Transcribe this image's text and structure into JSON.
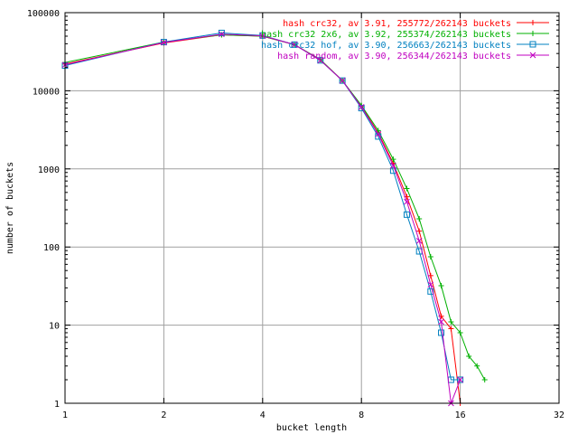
{
  "chart_data": {
    "type": "line",
    "title": "",
    "xlabel": "bucket length",
    "ylabel": "number of buckets",
    "x_scale": "log2",
    "y_scale": "log10",
    "xlim": [
      1,
      32
    ],
    "ylim": [
      1,
      100000
    ],
    "grid": true,
    "legend_position": "top-right",
    "x_ticks": [
      1,
      2,
      4,
      8,
      16,
      32
    ],
    "x_tick_labels": [
      "1",
      "2",
      "4",
      "8",
      "16",
      "32"
    ],
    "y_ticks": [
      1,
      10,
      100,
      1000,
      10000,
      100000
    ],
    "y_tick_labels": [
      "1",
      "10",
      "100",
      "1000",
      "10000",
      "100000"
    ],
    "series": [
      {
        "name": "hash crc32, av 3.91, 255772/262143 buckets",
        "color": "#ff0000",
        "marker": "plus",
        "x": [
          1,
          2,
          3,
          4,
          5,
          6,
          7,
          8,
          9,
          10,
          11,
          12,
          13,
          14,
          15,
          16
        ],
        "y": [
          22000,
          41000,
          52000,
          50000,
          39000,
          25000,
          13500,
          6300,
          2900,
          1180,
          440,
          160,
          43,
          13,
          9,
          1
        ]
      },
      {
        "name": "hash crc32 2x6, av 3.92, 255374/262143 buckets",
        "color": "#00b000",
        "marker": "plus",
        "x": [
          1,
          2,
          3,
          4,
          5,
          6,
          7,
          8,
          9,
          10,
          11,
          12,
          13,
          14,
          15,
          16,
          17,
          18,
          19
        ],
        "y": [
          23000,
          42000,
          52000,
          50000,
          39000,
          25000,
          13500,
          6500,
          3100,
          1330,
          560,
          230,
          75,
          32,
          11,
          8,
          4,
          3,
          2
        ]
      },
      {
        "name": "hash crc32 hof, av 3.90, 256663/262143 buckets",
        "color": "#0080c0",
        "marker": "square",
        "x": [
          1,
          2,
          3,
          4,
          5,
          6,
          7,
          8,
          9,
          10,
          11,
          12,
          13,
          14,
          15,
          16
        ],
        "y": [
          21000,
          42000,
          55000,
          51000,
          39000,
          24500,
          13500,
          6000,
          2600,
          950,
          260,
          88,
          27,
          8,
          2,
          2
        ]
      },
      {
        "name": "hash random, av 3.90, 256344/262143 buckets",
        "color": "#c000c0",
        "marker": "cross",
        "x": [
          1,
          2,
          3,
          4,
          5,
          6,
          7,
          8,
          9,
          10,
          11,
          12,
          13,
          14,
          15,
          16
        ],
        "y": [
          21500,
          41500,
          53000,
          50500,
          39000,
          24500,
          13500,
          6200,
          2800,
          1100,
          380,
          120,
          33,
          11,
          1,
          2
        ]
      }
    ]
  }
}
